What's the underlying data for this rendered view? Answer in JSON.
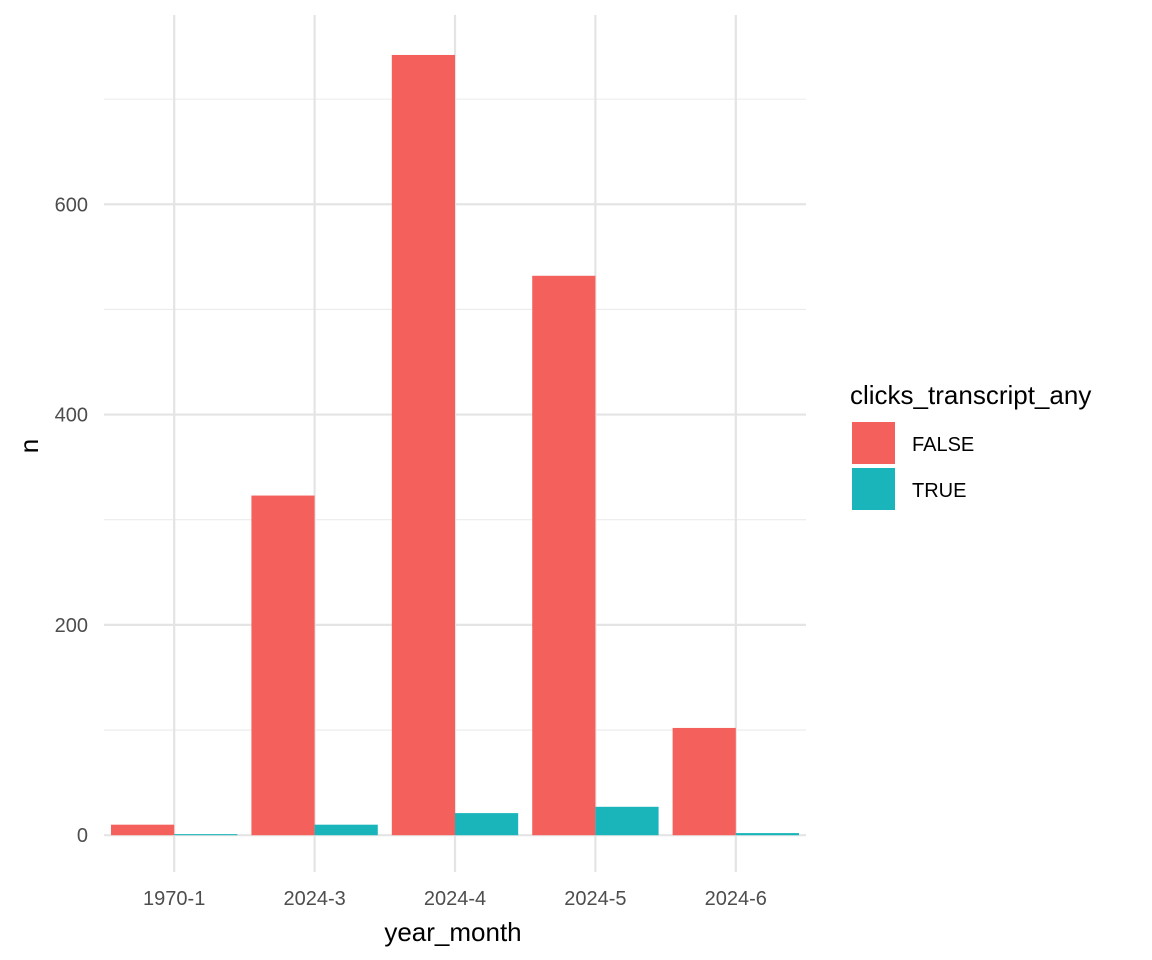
{
  "chart_data": {
    "type": "bar",
    "categories": [
      "1970-1",
      "2024-3",
      "2024-4",
      "2024-5",
      "2024-6"
    ],
    "series": [
      {
        "name": "FALSE",
        "color": "#F8766D",
        "values": [
          10,
          323,
          742,
          532,
          102
        ]
      },
      {
        "name": "TRUE",
        "color": "#00BFC4",
        "values": [
          1,
          10,
          21,
          27,
          2
        ]
      }
    ],
    "title": "",
    "xlabel": "year_month",
    "ylabel": "n",
    "ylim": [
      -35,
      780
    ],
    "yticks": [
      0,
      200,
      400,
      600
    ],
    "y_minor_ticks": [
      100,
      300,
      500,
      700
    ],
    "grid": true,
    "legend": {
      "title": "clicks_transcript_any",
      "placement": "right",
      "items": [
        "FALSE",
        "TRUE"
      ]
    },
    "bar_fill_colors": [
      "#F4605B",
      "#1AB5BA"
    ]
  }
}
